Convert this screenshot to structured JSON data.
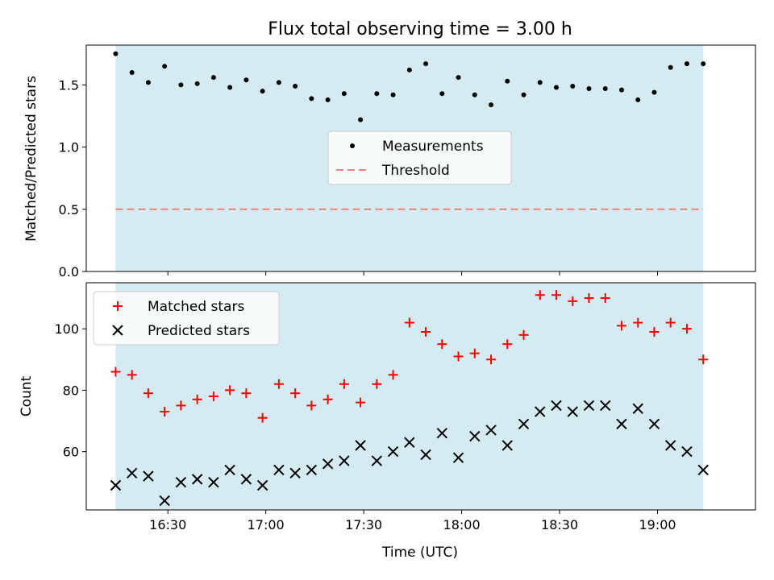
{
  "chart_data": [
    {
      "type": "scatter",
      "title": "Flux total observing time = 3.00 h",
      "xlabel": "",
      "ylabel": "Matched/Predicted stars",
      "xlim": [
        "16:05",
        "19:30"
      ],
      "ylim": [
        0,
        1.82
      ],
      "yticks": [
        "0.0",
        "0.5",
        "1.0",
        "1.5"
      ],
      "xticks": [
        "16:30",
        "17:00",
        "17:30",
        "18:00",
        "18:30",
        "19:00"
      ],
      "grid": false,
      "legend_position": "center",
      "shaded_interval": [
        "16:14",
        "19:14"
      ],
      "series": [
        {
          "name": "Measurements",
          "marker": "dot",
          "color": "#000000",
          "x": [
            "16:14",
            "16:19",
            "16:24",
            "16:29",
            "16:34",
            "16:39",
            "16:44",
            "16:49",
            "16:54",
            "16:59",
            "17:04",
            "17:09",
            "17:14",
            "17:19",
            "17:24",
            "17:29",
            "17:34",
            "17:39",
            "17:44",
            "17:49",
            "17:54",
            "17:59",
            "18:04",
            "18:09",
            "18:14",
            "18:19",
            "18:24",
            "18:29",
            "18:34",
            "18:39",
            "18:44",
            "18:49",
            "18:54",
            "18:59",
            "19:04",
            "19:09",
            "19:14"
          ],
          "y": [
            1.75,
            1.6,
            1.52,
            1.65,
            1.5,
            1.51,
            1.56,
            1.48,
            1.54,
            1.45,
            1.52,
            1.49,
            1.39,
            1.38,
            1.43,
            1.22,
            1.43,
            1.42,
            1.62,
            1.67,
            1.43,
            1.56,
            1.42,
            1.34,
            1.53,
            1.42,
            1.52,
            1.48,
            1.49,
            1.47,
            1.47,
            1.46,
            1.38,
            1.44,
            1.64,
            1.67,
            1.67
          ]
        },
        {
          "name": "Threshold",
          "type": "line",
          "style": "dashed",
          "color": "#f08080",
          "x": [
            "16:14",
            "19:14"
          ],
          "y": [
            0.5,
            0.5
          ]
        }
      ]
    },
    {
      "type": "scatter",
      "title": "",
      "xlabel": "Time (UTC)",
      "ylabel": "Count",
      "xlim": [
        "16:05",
        "19:30"
      ],
      "ylim": [
        41,
        115
      ],
      "yticks": [
        "60",
        "80",
        "100"
      ],
      "xticks": [
        "16:30",
        "17:00",
        "17:30",
        "18:00",
        "18:30",
        "19:00"
      ],
      "grid": false,
      "legend_position": "top-left",
      "shaded_interval": [
        "16:14",
        "19:14"
      ],
      "series": [
        {
          "name": "Matched stars",
          "marker": "plus",
          "color": "#ff0000",
          "x": [
            "16:14",
            "16:19",
            "16:24",
            "16:29",
            "16:34",
            "16:39",
            "16:44",
            "16:49",
            "16:54",
            "16:59",
            "17:04",
            "17:09",
            "17:14",
            "17:19",
            "17:24",
            "17:29",
            "17:34",
            "17:39",
            "17:44",
            "17:49",
            "17:54",
            "17:59",
            "18:04",
            "18:09",
            "18:14",
            "18:19",
            "18:24",
            "18:29",
            "18:34",
            "18:39",
            "18:44",
            "18:49",
            "18:54",
            "18:59",
            "19:04",
            "19:09",
            "19:14"
          ],
          "y": [
            86,
            85,
            79,
            73,
            75,
            77,
            78,
            80,
            79,
            71,
            82,
            79,
            75,
            77,
            82,
            76,
            82,
            85,
            102,
            99,
            95,
            91,
            92,
            90,
            95,
            98,
            111,
            111,
            109,
            110,
            110,
            101,
            102,
            99,
            102,
            100,
            90
          ]
        },
        {
          "name": "Predicted stars",
          "marker": "x",
          "color": "#000000",
          "x": [
            "16:14",
            "16:19",
            "16:24",
            "16:29",
            "16:34",
            "16:39",
            "16:44",
            "16:49",
            "16:54",
            "16:59",
            "17:04",
            "17:09",
            "17:14",
            "17:19",
            "17:24",
            "17:29",
            "17:34",
            "17:39",
            "17:44",
            "17:49",
            "17:54",
            "17:59",
            "18:04",
            "18:09",
            "18:14",
            "18:19",
            "18:24",
            "18:29",
            "18:34",
            "18:39",
            "18:44",
            "18:49",
            "18:54",
            "18:59",
            "19:04",
            "19:09",
            "19:14"
          ],
          "y": [
            49,
            53,
            52,
            44,
            50,
            51,
            50,
            54,
            51,
            49,
            54,
            53,
            54,
            56,
            57,
            62,
            57,
            60,
            63,
            59,
            66,
            58,
            65,
            67,
            62,
            69,
            73,
            75,
            73,
            75,
            75,
            69,
            74,
            69,
            62,
            60,
            54
          ]
        }
      ]
    }
  ],
  "colors": {
    "shade": "#d4ebf1",
    "matched": "#ff0000",
    "predicted": "#000000",
    "threshold": "#f08080"
  }
}
